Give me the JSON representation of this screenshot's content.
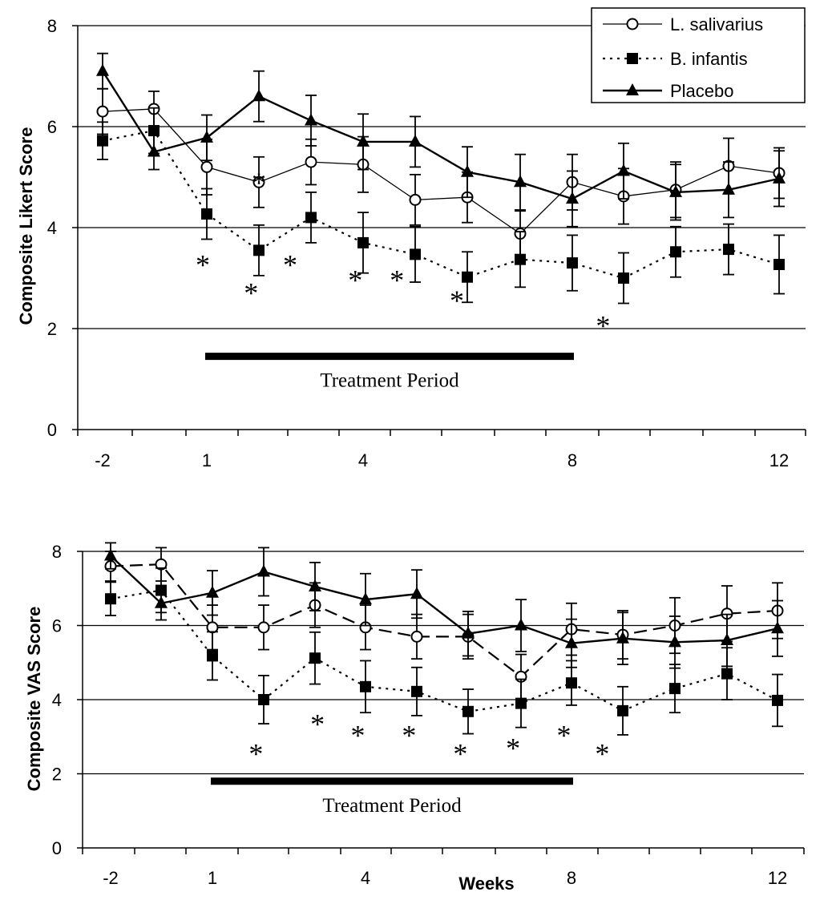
{
  "chart_data": [
    {
      "type": "line",
      "ylabel": "Composite Likert Score",
      "xlabel": "",
      "ylim": [
        0,
        8
      ],
      "yticks": [
        "0",
        "2",
        "4",
        "6",
        "8"
      ],
      "x": [
        -2,
        -1,
        1,
        2,
        3,
        4,
        5,
        6,
        7,
        8,
        9,
        10,
        11,
        12
      ],
      "xtick_labels": [
        {
          "x": -2,
          "label": "-2"
        },
        {
          "x": 1,
          "label": "1"
        },
        {
          "x": 4,
          "label": "4"
        },
        {
          "x": 8,
          "label": "8"
        },
        {
          "x": 12,
          "label": "12"
        }
      ],
      "grid": true,
      "legend": true,
      "legend_position": "top-right",
      "series": [
        {
          "name": "L. salivarius",
          "marker": "open-circle",
          "line": "thin-solid",
          "values": [
            6.3,
            6.35,
            5.2,
            4.9,
            5.3,
            5.25,
            4.55,
            4.6,
            3.88,
            4.9,
            4.62,
            4.75,
            5.22,
            5.08
          ],
          "err": [
            0.45,
            0.35,
            0.55,
            0.5,
            0.45,
            0.55,
            0.5,
            0.5,
            0.45,
            0.55,
            0.55,
            0.55,
            0.55,
            0.5
          ]
        },
        {
          "name": "B. infantis",
          "marker": "filled-square",
          "line": "dotted",
          "values": [
            5.72,
            5.92,
            4.27,
            3.55,
            4.2,
            3.7,
            3.47,
            3.02,
            3.37,
            3.3,
            3.0,
            3.52,
            3.57,
            3.27
          ],
          "err": [
            0.37,
            0.45,
            0.5,
            0.5,
            0.5,
            0.6,
            0.55,
            0.5,
            0.55,
            0.55,
            0.5,
            0.5,
            0.5,
            0.58
          ]
        },
        {
          "name": "Placebo",
          "marker": "filled-triangle",
          "line": "solid",
          "values": [
            7.1,
            5.5,
            5.78,
            6.6,
            6.12,
            5.7,
            5.7,
            5.1,
            4.9,
            4.57,
            5.12,
            4.7,
            4.75,
            4.97
          ],
          "err": [
            0.35,
            0.35,
            0.45,
            0.5,
            0.5,
            0.55,
            0.5,
            0.5,
            0.55,
            0.55,
            0.55,
            0.55,
            0.55,
            0.55
          ]
        }
      ],
      "treatment_bar": {
        "label": "Treatment Period",
        "y": 1.45,
        "x_from": 1,
        "x_to": 8
      },
      "annotations": [
        {
          "text": "*",
          "x": 2.0,
          "y": 5.08
        },
        {
          "text": "*",
          "x": 0.85,
          "y": 3.45
        },
        {
          "text": "*",
          "x": 1.85,
          "y": 2.9
        },
        {
          "text": "*",
          "x": 2.6,
          "y": 3.45
        },
        {
          "text": "*",
          "x": 3.85,
          "y": 3.15
        },
        {
          "text": "*",
          "x": 4.65,
          "y": 3.15
        },
        {
          "text": "*",
          "x": 5.8,
          "y": 2.75
        },
        {
          "text": "*",
          "x": 8.6,
          "y": 2.25
        }
      ]
    },
    {
      "type": "line",
      "ylabel": "Composite VAS Score",
      "xlabel": "Weeks",
      "ylim": [
        0,
        8
      ],
      "yticks": [
        "0",
        "2",
        "4",
        "6",
        "8"
      ],
      "x": [
        -2,
        -1,
        1,
        2,
        3,
        4,
        5,
        6,
        7,
        8,
        9,
        10,
        11,
        12
      ],
      "xtick_labels": [
        {
          "x": -2,
          "label": "-2"
        },
        {
          "x": 1,
          "label": "1"
        },
        {
          "x": 4,
          "label": "4"
        },
        {
          "x": 8,
          "label": "8"
        },
        {
          "x": 12,
          "label": "12"
        }
      ],
      "grid": true,
      "legend": false,
      "series": [
        {
          "name": "L. salivarius",
          "marker": "open-circle",
          "line": "dashed",
          "values": [
            7.6,
            7.65,
            5.95,
            5.95,
            6.55,
            5.95,
            5.7,
            5.7,
            4.62,
            5.9,
            5.75,
            6.0,
            6.32,
            6.4
          ],
          "err": [
            0.4,
            0.45,
            0.6,
            0.6,
            0.6,
            0.6,
            0.6,
            0.6,
            0.6,
            0.7,
            0.65,
            0.75,
            0.75,
            0.75
          ]
        },
        {
          "name": "B. infantis",
          "marker": "filled-square",
          "line": "dotted",
          "values": [
            6.72,
            6.95,
            5.18,
            4.0,
            5.12,
            4.35,
            4.22,
            3.68,
            3.9,
            4.45,
            3.7,
            4.3,
            4.7,
            3.98
          ],
          "err": [
            0.45,
            0.6,
            0.65,
            0.65,
            0.7,
            0.7,
            0.65,
            0.6,
            0.65,
            0.6,
            0.65,
            0.65,
            0.7,
            0.7
          ]
        },
        {
          "name": "Placebo",
          "marker": "filled-triangle",
          "line": "solid",
          "values": [
            7.88,
            6.6,
            6.88,
            7.45,
            7.05,
            6.7,
            6.85,
            5.78,
            6.0,
            5.52,
            5.65,
            5.55,
            5.6,
            5.92
          ],
          "err": [
            0.35,
            0.45,
            0.6,
            0.65,
            0.65,
            0.7,
            0.65,
            0.6,
            0.7,
            0.65,
            0.7,
            0.7,
            0.7,
            0.75
          ]
        }
      ],
      "treatment_bar": {
        "label": "Treatment Period",
        "y": 1.8,
        "x_from": 1,
        "x_to": 8
      },
      "annotations": [
        {
          "text": "*",
          "x": 3.05,
          "y": 3.6
        },
        {
          "text": "*",
          "x": 1.85,
          "y": 2.8
        },
        {
          "text": "*",
          "x": 3.85,
          "y": 3.3
        },
        {
          "text": "*",
          "x": 4.85,
          "y": 3.3
        },
        {
          "text": "*",
          "x": 5.85,
          "y": 2.8
        },
        {
          "text": "*",
          "x": 6.85,
          "y": 2.95
        },
        {
          "text": "*",
          "x": 7.85,
          "y": 3.3
        },
        {
          "text": "*",
          "x": 8.6,
          "y": 2.8
        }
      ]
    }
  ]
}
